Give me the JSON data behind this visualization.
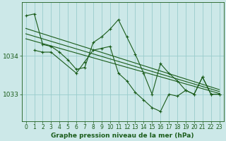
{
  "background_color": "#cce8e8",
  "plot_bg_color": "#cce8e8",
  "grid_color": "#99cccc",
  "line_color": "#1a5c1a",
  "xlabel": "Graphe pression niveau de la mer (hPa)",
  "xlabel_fontsize": 6.5,
  "ylabel_fontsize": 6.5,
  "tick_fontsize": 5.5,
  "xlim": [
    -0.5,
    23.5
  ],
  "ylim": [
    1032.3,
    1035.4
  ],
  "yticks": [
    1033,
    1034
  ],
  "xticks": [
    0,
    1,
    2,
    3,
    4,
    5,
    6,
    7,
    8,
    9,
    10,
    11,
    12,
    13,
    14,
    15,
    16,
    17,
    18,
    19,
    20,
    21,
    22,
    23
  ],
  "series1_x": [
    0,
    1,
    2,
    3,
    4,
    5,
    6,
    7,
    8,
    9,
    10,
    11,
    12,
    13,
    14,
    15,
    16,
    17,
    18,
    19,
    20,
    21,
    22,
    23
  ],
  "series1_y": [
    1035.05,
    1035.1,
    1034.3,
    1034.25,
    1034.1,
    1033.9,
    1033.65,
    1033.7,
    1034.35,
    1034.5,
    1034.7,
    1034.95,
    1034.5,
    1034.05,
    1033.55,
    1033.0,
    1033.8,
    1033.55,
    1033.35,
    1033.1,
    1033.0,
    1033.45,
    1033.0,
    1033.0
  ],
  "series2_x": [
    1,
    2,
    3,
    6,
    7,
    8,
    9,
    10,
    11,
    12,
    13,
    14,
    15,
    16,
    17,
    18,
    19,
    20,
    21,
    22,
    23
  ],
  "series2_y": [
    1034.15,
    1034.1,
    1034.1,
    1033.55,
    1033.85,
    1034.15,
    1034.2,
    1034.25,
    1033.55,
    1033.35,
    1033.05,
    1032.85,
    1032.65,
    1032.55,
    1033.0,
    1032.95,
    1033.1,
    1033.0,
    1033.45,
    1033.0,
    1033.0
  ],
  "trend1_x": [
    0,
    23
  ],
  "trend1_y": [
    1034.72,
    1033.12
  ],
  "trend2_x": [
    0,
    23
  ],
  "trend2_y": [
    1034.58,
    1033.07
  ],
  "trend3_x": [
    0,
    23
  ],
  "trend3_y": [
    1034.45,
    1033.02
  ]
}
